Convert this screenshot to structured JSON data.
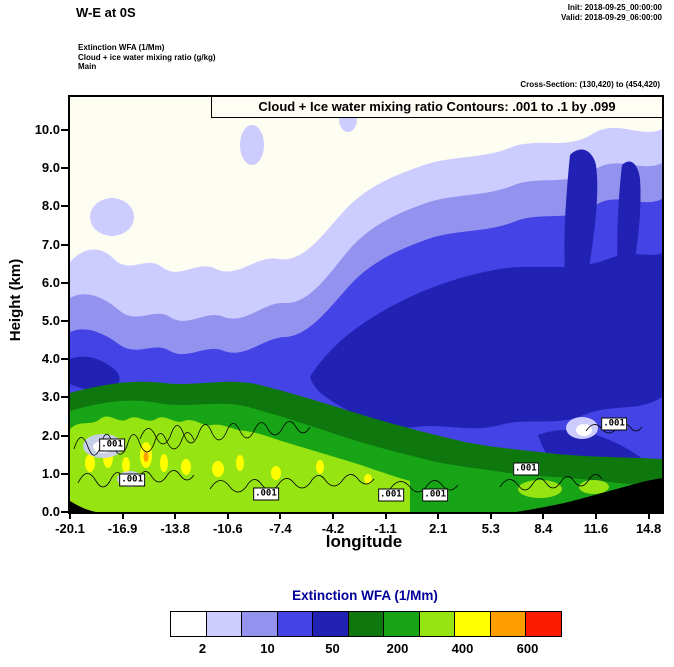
{
  "header": {
    "plot_title": "W-E at 0S",
    "init": "Init: 2018-09-25_00:00:00",
    "valid": "Valid: 2018-09-29_06:00:00",
    "field_lines": [
      "Extinction WFA (1/Mm)",
      "Cloud + ice water mixing ratio (g/kg)",
      "Main"
    ],
    "cross_section": "Cross-Section: (130,420) to (454,420)"
  },
  "chart_data": {
    "type": "heatmap",
    "subtype": "filled-contour-vertical-cross-section",
    "title": "Cloud + Ice water mixing ratio Contours: .001 to .1 by .099",
    "xlabel": "longitude",
    "ylabel": "Height (km)",
    "x_ticks": [
      "-20.1",
      "-16.9",
      "-13.8",
      "-10.6",
      "-7.4",
      "-4.2",
      "-1.1",
      "2.1",
      "5.3",
      "8.4",
      "11.6",
      "14.8"
    ],
    "y_ticks": [
      "0.0",
      "1.0",
      "2.0",
      "3.0",
      "4.0",
      "5.0",
      "6.0",
      "7.0",
      "8.0",
      "9.0",
      "10.0"
    ],
    "ylim_km": [
      0.0,
      10.4
    ],
    "fill_variable": "Extinction WFA (1/Mm)",
    "contour_variable": "Cloud + Ice water mixing ratio (g/kg)",
    "contour_levels": ".001 to .1 by .099",
    "contour_labels": [
      {
        "text": ".001",
        "x_pct": 7.1,
        "y_pct": 83.9
      },
      {
        "text": ".001",
        "x_pct": 10.5,
        "y_pct": 92.3
      },
      {
        "text": ".001",
        "x_pct": 33.1,
        "y_pct": 95.7
      },
      {
        "text": ".001",
        "x_pct": 54.2,
        "y_pct": 95.9
      },
      {
        "text": ".001",
        "x_pct": 61.7,
        "y_pct": 95.9
      },
      {
        "text": ".001",
        "x_pct": 77.0,
        "y_pct": 89.6
      },
      {
        "text": ".001",
        "x_pct": 91.9,
        "y_pct": 78.8
      }
    ],
    "colorbar": {
      "title": "Extinction WFA (1/Mm)",
      "colors": [
        "#ffffff",
        "#ccccff",
        "#9393ef",
        "#4343e6",
        "#2121b4",
        "#0e770e",
        "#17a517",
        "#96e412",
        "#ffff00",
        "#ff9e00",
        "#fb1c00"
      ],
      "tick_labels": [
        "2",
        "10",
        "50",
        "200",
        "400",
        "600"
      ]
    },
    "features": [
      "Highest extinction (yellow/lime-green, >200-400/Mm) in a shallow layer below ~2 km between lon -20 and -4",
      "Moderate extinction (blue shades, 10-200/Mm) plume sloping upward from ~3 km near lon -10 to ~8-10 km near lon 15",
      "Dark-blue core (~200/Mm) between ~3 and 6 km over lon -6 to 15",
      "Cloud/ice mixing-ratio .001 contour regions confined below ~2.5 km",
      "Black terrain silhouette rising to ~0.8 km at the eastern edge (lon 8 to 14.8)"
    ]
  }
}
